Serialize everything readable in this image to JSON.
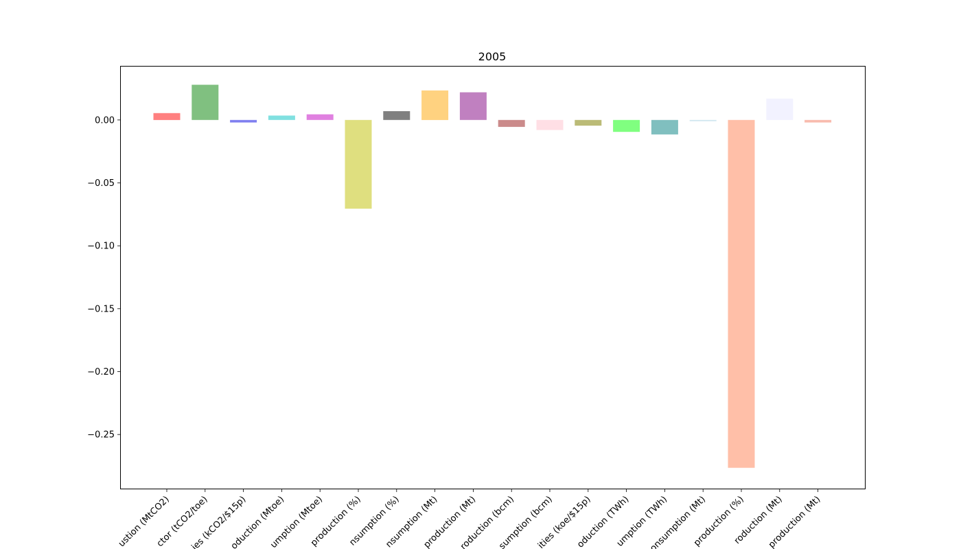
{
  "chart_data": {
    "type": "bar",
    "title": "2005",
    "xlabel": "",
    "ylabel": "",
    "ylim": [
      -0.293,
      0.043
    ],
    "yticks": [
      0.0,
      -0.05,
      -0.1,
      -0.15,
      -0.2,
      -0.25
    ],
    "ytick_labels": [
      "0.00",
      "−0.05",
      "−0.10",
      "−0.15",
      "−0.20",
      "−0.25"
    ],
    "categories": [
      "ustion (MtCO2)",
      "ctor (tCO2/toe)",
      "ies (kCO2/$15p)",
      "oduction (Mtoe)",
      "umption (Mtoe)",
      "production (%)",
      "nsumption (%)",
      "nsumption (Mt)",
      "production (Mt)",
      "roduction (bcm)",
      "sumption (bcm)",
      "ities (koe/$15p)",
      "oduction (TWh)",
      "umption (TWh)",
      "onsumption (Mt)",
      "production (%)",
      "roduction (Mt)",
      "production (Mt)"
    ],
    "values": [
      0.0055,
      0.028,
      -0.002,
      0.0035,
      0.0045,
      -0.0705,
      0.007,
      0.0235,
      0.022,
      -0.0055,
      -0.008,
      -0.0045,
      -0.0095,
      -0.0115,
      -0.001,
      -0.2765,
      0.017,
      -0.002
    ],
    "colors": [
      "#ff8080",
      "#80c080",
      "#8080f0",
      "#80e0e0",
      "#e080e0",
      "#dfdf7f",
      "#808080",
      "#ffd280",
      "#c080c0",
      "#cb8b8b",
      "#ffdfe5",
      "#bbbb77",
      "#80ff80",
      "#80bfbf",
      "#cfe5ef",
      "#ffbfa8",
      "#f2f2ff",
      "#f8bbae"
    ],
    "grid": false,
    "legend": "none"
  }
}
